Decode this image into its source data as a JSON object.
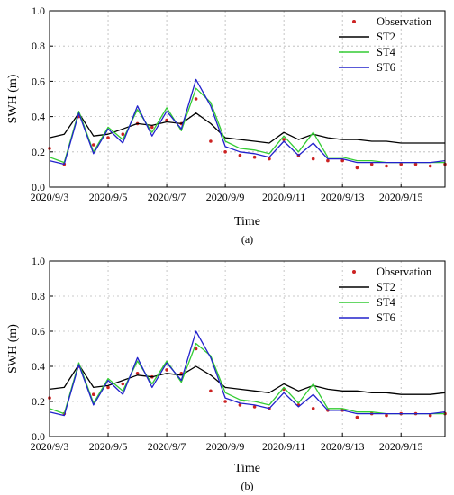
{
  "chart_data": [
    {
      "type": "line",
      "panel_label": "(a)",
      "xlabel": "Time",
      "ylabel": "SWH (m)",
      "ylim": [
        0.0,
        1.0
      ],
      "y_ticks": [
        0.0,
        0.2,
        0.4,
        0.6,
        0.8,
        1.0
      ],
      "y_tick_labels": [
        "0.0",
        "0.2",
        "0.4",
        "0.6",
        "0.8",
        "1.0"
      ],
      "xlim": [
        "2020/9/3",
        "2020/9/16 12:00"
      ],
      "x_ticks": [
        "2020/9/3",
        "2020/9/5",
        "2020/9/7",
        "2020/9/9",
        "2020/9/11",
        "2020/9/13",
        "2020/9/15"
      ],
      "grid": true,
      "legend_position": "top-right",
      "series": [
        {
          "name": "Observation",
          "style": "markers",
          "color": "#cc2222",
          "x": [
            "2020/9/3 00:00",
            "2020/9/3 12:00",
            "2020/9/4 00:00",
            "2020/9/4 12:00",
            "2020/9/5 00:00",
            "2020/9/5 12:00",
            "2020/9/6 00:00",
            "2020/9/6 12:00",
            "2020/9/7 00:00",
            "2020/9/7 12:00",
            "2020/9/8 00:00",
            "2020/9/8 12:00",
            "2020/9/9 00:00",
            "2020/9/9 12:00",
            "2020/9/10 00:00",
            "2020/9/10 12:00",
            "2020/9/11 00:00",
            "2020/9/11 12:00",
            "2020/9/12 00:00",
            "2020/9/12 12:00",
            "2020/9/13 00:00",
            "2020/9/13 12:00",
            "2020/9/14 00:00",
            "2020/9/14 12:00",
            "2020/9/15 00:00",
            "2020/9/15 12:00",
            "2020/9/16 00:00",
            "2020/9/16 12:00"
          ],
          "y": [
            0.22,
            0.13,
            0.4,
            0.24,
            0.28,
            0.3,
            0.36,
            0.34,
            0.38,
            0.36,
            0.5,
            0.26,
            0.2,
            0.18,
            0.17,
            0.16,
            0.27,
            0.18,
            0.16,
            0.15,
            0.15,
            0.11,
            0.13,
            0.12,
            0.13,
            0.13,
            0.12,
            0.13
          ]
        },
        {
          "name": "ST2",
          "style": "line",
          "color": "#000000",
          "x": [
            "2020/9/3 00:00",
            "2020/9/3 12:00",
            "2020/9/4 00:00",
            "2020/9/4 12:00",
            "2020/9/5 00:00",
            "2020/9/5 12:00",
            "2020/9/6 00:00",
            "2020/9/6 12:00",
            "2020/9/7 00:00",
            "2020/9/7 12:00",
            "2020/9/8 00:00",
            "2020/9/8 12:00",
            "2020/9/9 00:00",
            "2020/9/9 12:00",
            "2020/9/10 00:00",
            "2020/9/10 12:00",
            "2020/9/11 00:00",
            "2020/9/11 12:00",
            "2020/9/12 00:00",
            "2020/9/12 12:00",
            "2020/9/13 00:00",
            "2020/9/13 12:00",
            "2020/9/14 00:00",
            "2020/9/14 12:00",
            "2020/9/15 00:00",
            "2020/9/15 12:00",
            "2020/9/16 00:00",
            "2020/9/16 12:00"
          ],
          "y": [
            0.28,
            0.3,
            0.42,
            0.29,
            0.3,
            0.33,
            0.36,
            0.35,
            0.37,
            0.36,
            0.42,
            0.36,
            0.28,
            0.27,
            0.26,
            0.25,
            0.31,
            0.27,
            0.3,
            0.28,
            0.27,
            0.27,
            0.26,
            0.26,
            0.25,
            0.25,
            0.25,
            0.25
          ]
        },
        {
          "name": "ST4",
          "style": "line",
          "color": "#33cc33",
          "x": [
            "2020/9/3 00:00",
            "2020/9/3 12:00",
            "2020/9/4 00:00",
            "2020/9/4 12:00",
            "2020/9/5 00:00",
            "2020/9/5 12:00",
            "2020/9/6 00:00",
            "2020/9/6 12:00",
            "2020/9/7 00:00",
            "2020/9/7 12:00",
            "2020/9/8 00:00",
            "2020/9/8 12:00",
            "2020/9/9 00:00",
            "2020/9/9 12:00",
            "2020/9/10 00:00",
            "2020/9/10 12:00",
            "2020/9/11 00:00",
            "2020/9/11 12:00",
            "2020/9/12 00:00",
            "2020/9/12 12:00",
            "2020/9/13 00:00",
            "2020/9/13 12:00",
            "2020/9/14 00:00",
            "2020/9/14 12:00",
            "2020/9/15 00:00",
            "2020/9/15 12:00",
            "2020/9/16 00:00",
            "2020/9/16 12:00"
          ],
          "y": [
            0.17,
            0.14,
            0.43,
            0.2,
            0.34,
            0.27,
            0.44,
            0.31,
            0.45,
            0.32,
            0.56,
            0.48,
            0.26,
            0.22,
            0.21,
            0.19,
            0.29,
            0.2,
            0.31,
            0.17,
            0.17,
            0.15,
            0.15,
            0.14,
            0.14,
            0.14,
            0.14,
            0.14
          ]
        },
        {
          "name": "ST6",
          "style": "line",
          "color": "#2222cc",
          "x": [
            "2020/9/3 00:00",
            "2020/9/3 12:00",
            "2020/9/4 00:00",
            "2020/9/4 12:00",
            "2020/9/5 00:00",
            "2020/9/5 12:00",
            "2020/9/6 00:00",
            "2020/9/6 12:00",
            "2020/9/7 00:00",
            "2020/9/7 12:00",
            "2020/9/8 00:00",
            "2020/9/8 12:00",
            "2020/9/9 00:00",
            "2020/9/9 12:00",
            "2020/9/10 00:00",
            "2020/9/10 12:00",
            "2020/9/11 00:00",
            "2020/9/11 12:00",
            "2020/9/12 00:00",
            "2020/9/12 12:00",
            "2020/9/13 00:00",
            "2020/9/13 12:00",
            "2020/9/14 00:00",
            "2020/9/14 12:00",
            "2020/9/15 00:00",
            "2020/9/15 12:00",
            "2020/9/16 00:00",
            "2020/9/16 12:00"
          ],
          "y": [
            0.15,
            0.13,
            0.42,
            0.19,
            0.33,
            0.25,
            0.46,
            0.29,
            0.43,
            0.33,
            0.61,
            0.46,
            0.23,
            0.2,
            0.19,
            0.17,
            0.26,
            0.18,
            0.25,
            0.16,
            0.16,
            0.14,
            0.14,
            0.14,
            0.14,
            0.14,
            0.14,
            0.15
          ]
        }
      ]
    },
    {
      "type": "line",
      "panel_label": "(b)",
      "xlabel": "Time",
      "ylabel": "SWH (m)",
      "ylim": [
        0.0,
        1.0
      ],
      "y_ticks": [
        0.0,
        0.2,
        0.4,
        0.6,
        0.8,
        1.0
      ],
      "y_tick_labels": [
        "0.0",
        "0.2",
        "0.4",
        "0.6",
        "0.8",
        "1.0"
      ],
      "xlim": [
        "2020/9/3",
        "2020/9/16 12:00"
      ],
      "x_ticks": [
        "2020/9/3",
        "2020/9/5",
        "2020/9/7",
        "2020/9/9",
        "2020/9/11",
        "2020/9/13",
        "2020/9/15"
      ],
      "grid": true,
      "legend_position": "top-right",
      "series": [
        {
          "name": "Observation",
          "style": "markers",
          "color": "#cc2222",
          "x": [
            "2020/9/3 00:00",
            "2020/9/3 12:00",
            "2020/9/4 00:00",
            "2020/9/4 12:00",
            "2020/9/5 00:00",
            "2020/9/5 12:00",
            "2020/9/6 00:00",
            "2020/9/6 12:00",
            "2020/9/7 00:00",
            "2020/9/7 12:00",
            "2020/9/8 00:00",
            "2020/9/8 12:00",
            "2020/9/9 00:00",
            "2020/9/9 12:00",
            "2020/9/10 00:00",
            "2020/9/10 12:00",
            "2020/9/11 00:00",
            "2020/9/11 12:00",
            "2020/9/12 00:00",
            "2020/9/12 12:00",
            "2020/9/13 00:00",
            "2020/9/13 12:00",
            "2020/9/14 00:00",
            "2020/9/14 12:00",
            "2020/9/15 00:00",
            "2020/9/15 12:00",
            "2020/9/16 00:00",
            "2020/9/16 12:00"
          ],
          "y": [
            0.22,
            0.13,
            0.4,
            0.24,
            0.28,
            0.3,
            0.36,
            0.34,
            0.38,
            0.36,
            0.5,
            0.26,
            0.2,
            0.18,
            0.17,
            0.16,
            0.27,
            0.18,
            0.16,
            0.15,
            0.15,
            0.11,
            0.13,
            0.12,
            0.13,
            0.13,
            0.12,
            0.13
          ]
        },
        {
          "name": "ST2",
          "style": "line",
          "color": "#000000",
          "x": [
            "2020/9/3 00:00",
            "2020/9/3 12:00",
            "2020/9/4 00:00",
            "2020/9/4 12:00",
            "2020/9/5 00:00",
            "2020/9/5 12:00",
            "2020/9/6 00:00",
            "2020/9/6 12:00",
            "2020/9/7 00:00",
            "2020/9/7 12:00",
            "2020/9/8 00:00",
            "2020/9/8 12:00",
            "2020/9/9 00:00",
            "2020/9/9 12:00",
            "2020/9/10 00:00",
            "2020/9/10 12:00",
            "2020/9/11 00:00",
            "2020/9/11 12:00",
            "2020/9/12 00:00",
            "2020/9/12 12:00",
            "2020/9/13 00:00",
            "2020/9/13 12:00",
            "2020/9/14 00:00",
            "2020/9/14 12:00",
            "2020/9/15 00:00",
            "2020/9/15 12:00",
            "2020/9/16 00:00",
            "2020/9/16 12:00"
          ],
          "y": [
            0.27,
            0.28,
            0.41,
            0.28,
            0.29,
            0.32,
            0.35,
            0.34,
            0.36,
            0.35,
            0.4,
            0.35,
            0.28,
            0.27,
            0.26,
            0.25,
            0.3,
            0.26,
            0.29,
            0.27,
            0.26,
            0.26,
            0.25,
            0.25,
            0.24,
            0.24,
            0.24,
            0.25
          ]
        },
        {
          "name": "ST4",
          "style": "line",
          "color": "#33cc33",
          "x": [
            "2020/9/3 00:00",
            "2020/9/3 12:00",
            "2020/9/4 00:00",
            "2020/9/4 12:00",
            "2020/9/5 00:00",
            "2020/9/5 12:00",
            "2020/9/6 00:00",
            "2020/9/6 12:00",
            "2020/9/7 00:00",
            "2020/9/7 12:00",
            "2020/9/8 00:00",
            "2020/9/8 12:00",
            "2020/9/9 00:00",
            "2020/9/9 12:00",
            "2020/9/10 00:00",
            "2020/9/10 12:00",
            "2020/9/11 00:00",
            "2020/9/11 12:00",
            "2020/9/12 00:00",
            "2020/9/12 12:00",
            "2020/9/13 00:00",
            "2020/9/13 12:00",
            "2020/9/14 00:00",
            "2020/9/14 12:00",
            "2020/9/15 00:00",
            "2020/9/15 12:00",
            "2020/9/16 00:00",
            "2020/9/16 12:00"
          ],
          "y": [
            0.16,
            0.13,
            0.42,
            0.19,
            0.33,
            0.26,
            0.43,
            0.3,
            0.43,
            0.31,
            0.53,
            0.46,
            0.25,
            0.21,
            0.2,
            0.18,
            0.28,
            0.19,
            0.3,
            0.16,
            0.16,
            0.14,
            0.14,
            0.13,
            0.13,
            0.13,
            0.13,
            0.13
          ]
        },
        {
          "name": "ST6",
          "style": "line",
          "color": "#2222cc",
          "x": [
            "2020/9/3 00:00",
            "2020/9/3 12:00",
            "2020/9/4 00:00",
            "2020/9/4 12:00",
            "2020/9/5 00:00",
            "2020/9/5 12:00",
            "2020/9/6 00:00",
            "2020/9/6 12:00",
            "2020/9/7 00:00",
            "2020/9/7 12:00",
            "2020/9/8 00:00",
            "2020/9/8 12:00",
            "2020/9/9 00:00",
            "2020/9/9 12:00",
            "2020/9/10 00:00",
            "2020/9/10 12:00",
            "2020/9/11 00:00",
            "2020/9/11 12:00",
            "2020/9/12 00:00",
            "2020/9/12 12:00",
            "2020/9/13 00:00",
            "2020/9/13 12:00",
            "2020/9/14 00:00",
            "2020/9/14 12:00",
            "2020/9/15 00:00",
            "2020/9/15 12:00",
            "2020/9/16 00:00",
            "2020/9/16 12:00"
          ],
          "y": [
            0.14,
            0.12,
            0.41,
            0.18,
            0.32,
            0.24,
            0.45,
            0.28,
            0.42,
            0.32,
            0.6,
            0.45,
            0.22,
            0.19,
            0.18,
            0.16,
            0.25,
            0.17,
            0.24,
            0.15,
            0.15,
            0.13,
            0.13,
            0.13,
            0.13,
            0.13,
            0.13,
            0.14
          ]
        }
      ]
    }
  ]
}
